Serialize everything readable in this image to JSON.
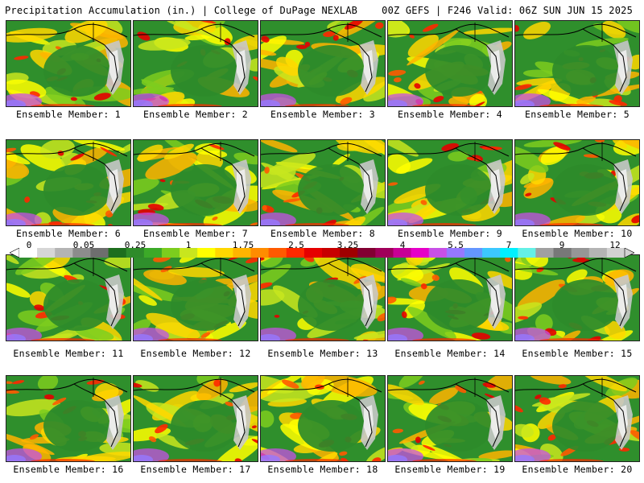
{
  "header": {
    "title_left": "Precipitation Accumulation (in.) | College of DuPage NEXLAB",
    "title_right": "00Z GEFS | F246 Valid: 06Z SUN JUN 15 2025"
  },
  "panel_label_prefix": "Ensemble Member: ",
  "members": [
    {
      "label": "Ensemble Member: 1"
    },
    {
      "label": "Ensemble Member: 2"
    },
    {
      "label": "Ensemble Member: 3"
    },
    {
      "label": "Ensemble Member: 4"
    },
    {
      "label": "Ensemble Member: 5"
    },
    {
      "label": "Ensemble Member: 6"
    },
    {
      "label": "Ensemble Member: 7"
    },
    {
      "label": "Ensemble Member: 8"
    },
    {
      "label": "Ensemble Member: 9"
    },
    {
      "label": "Ensemble Member: 10"
    },
    {
      "label": "Ensemble Member: 11"
    },
    {
      "label": "Ensemble Member: 12"
    },
    {
      "label": "Ensemble Member: 13"
    },
    {
      "label": "Ensemble Member: 14"
    },
    {
      "label": "Ensemble Member: 15"
    },
    {
      "label": "Ensemble Member: 16"
    },
    {
      "label": "Ensemble Member: 17"
    },
    {
      "label": "Ensemble Member: 18"
    },
    {
      "label": "Ensemble Member: 19"
    },
    {
      "label": "Ensemble Member: 20"
    }
  ],
  "colorbar": {
    "tick_labels": [
      "0",
      "0.05",
      "0.25",
      "1",
      "1.75",
      "2.5",
      "3.25",
      "4",
      "5.5",
      "7",
      "9",
      "12"
    ],
    "colors": [
      "#ffffff",
      "#d6d6d6",
      "#b4b4b4",
      "#8c8c8c",
      "#6e6e6e",
      "#1e6e1e",
      "#2e8b2a",
      "#3caa28",
      "#7ccd1e",
      "#c8e61e",
      "#ffff00",
      "#ffd700",
      "#ffb400",
      "#ff8c00",
      "#ff5a00",
      "#ff2800",
      "#e60000",
      "#c80000",
      "#a00000",
      "#820032",
      "#a0005a",
      "#c80096",
      "#e600c8",
      "#c850e6",
      "#9678ff",
      "#6496ff",
      "#3cc8ff",
      "#00f0ff",
      "#64f0e6",
      "#a0a0a0",
      "#787878",
      "#969696",
      "#b4b4b4",
      "#d2d2d2"
    ]
  }
}
